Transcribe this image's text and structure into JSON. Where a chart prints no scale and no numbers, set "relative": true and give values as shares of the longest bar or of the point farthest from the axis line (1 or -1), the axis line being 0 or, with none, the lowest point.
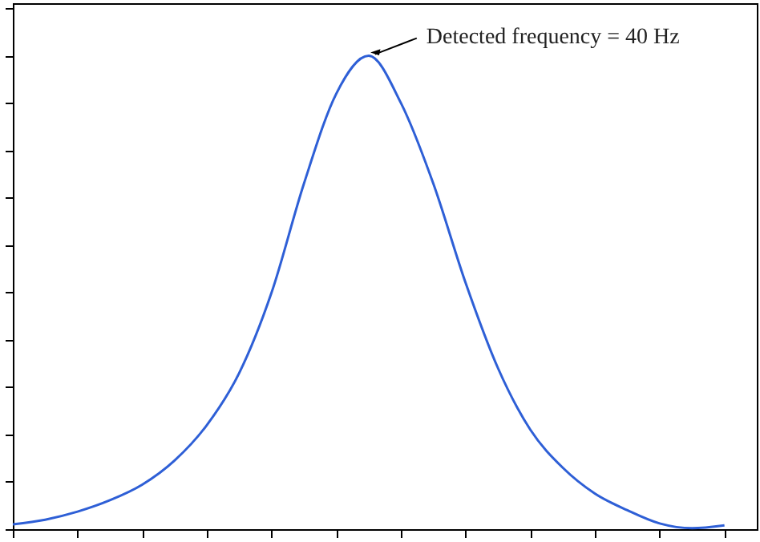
{
  "chart_data": {
    "type": "line",
    "relative": true,
    "categories": [
      null,
      null,
      null,
      null,
      null,
      null,
      null,
      null,
      null,
      null,
      null,
      null,
      null,
      null,
      null,
      null,
      null,
      null,
      null,
      null,
      null,
      null,
      null,
      null
    ],
    "series": [
      {
        "color": "#2e5fd6",
        "values": [
          0.01,
          0.02,
          0.037,
          0.061,
          0.094,
          0.145,
          0.22,
          0.33,
          0.5,
          0.73,
          0.92,
          1.0,
          0.9,
          0.73,
          0.52,
          0.34,
          0.21,
          0.13,
          0.075,
          0.04,
          0.012,
          0.002,
          0.008,
          null
        ]
      }
    ],
    "annotations": [
      "Detected frequency = 40 Hz"
    ],
    "tick_labels": false
  }
}
